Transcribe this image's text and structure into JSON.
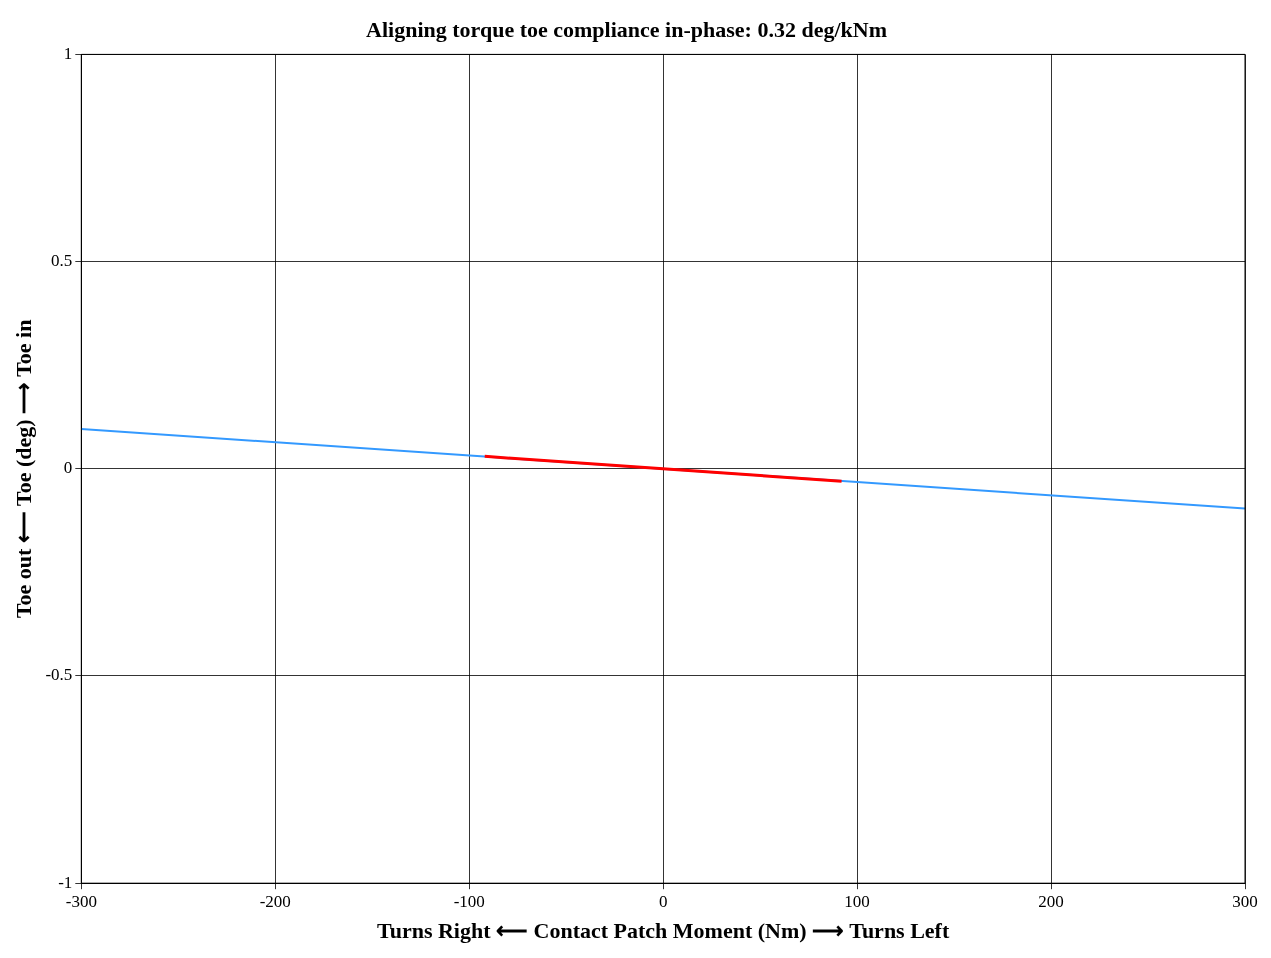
{
  "chart_data": {
    "type": "line",
    "title": "Aligning torque toe compliance in-phase: 0.32 deg/kNm",
    "xlabel": "Turns Right ⟵ Contact Patch Moment (Nm) ⟶ Turns Left",
    "ylabel": "Toe out ⟵ Toe (deg) ⟶ Toe in",
    "series": [
      {
        "color": "#3399ff",
        "x": [
          -300,
          300
        ],
        "values": [
          0.096,
          -0.096
        ]
      },
      {
        "color": "#ff0000",
        "x": [
          -92,
          92
        ],
        "values": [
          0.03,
          -0.03
        ]
      }
    ],
    "xlim": [
      -300,
      300
    ],
    "xticks": [
      -300,
      -200,
      -100,
      0,
      100,
      200,
      300
    ],
    "ylim": [
      -1,
      1
    ],
    "yticks": [
      -1,
      -0.5,
      0,
      0.5,
      1
    ],
    "grid": true,
    "legend": false,
    "marker": "none",
    "line_style": "solid"
  }
}
